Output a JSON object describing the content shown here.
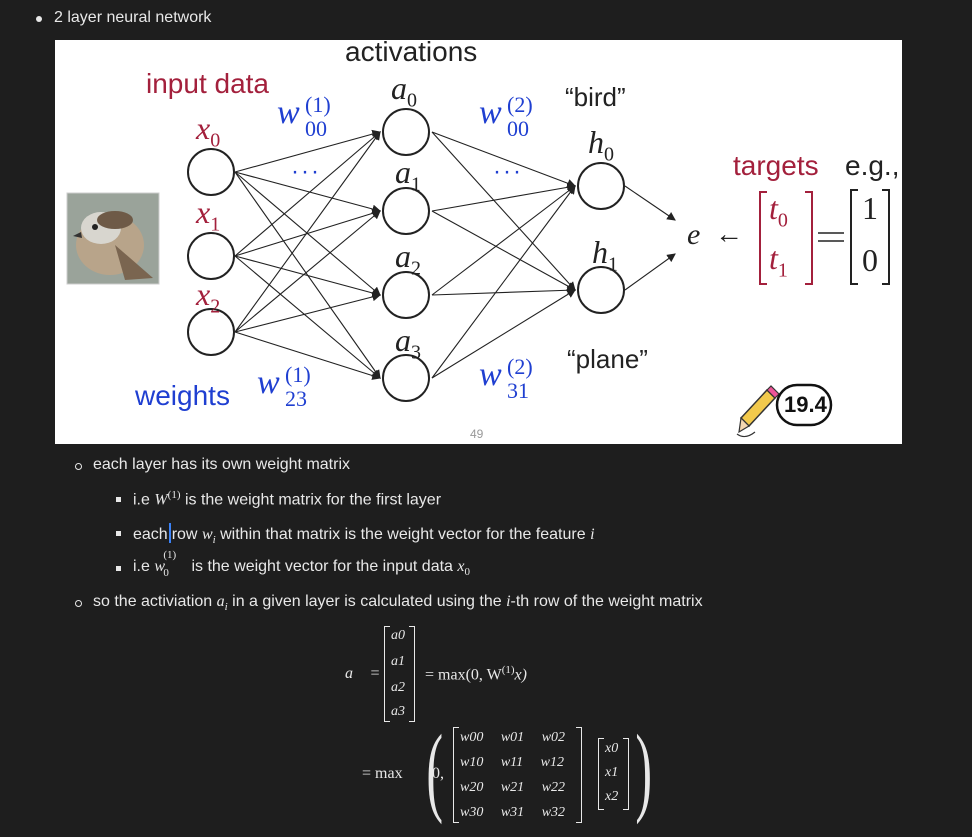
{
  "top_bullet": {
    "text": "2 layer neural network"
  },
  "slide": {
    "title": "activations",
    "input_label": "input data",
    "weights_label": "weights",
    "targets_label": "targets",
    "eg_label": "e.g.,",
    "bird_label": "“bird”",
    "plane_label": "“plane”",
    "page_number": "49",
    "badge": "19.4",
    "x_nodes": [
      "x",
      "x",
      "x"
    ],
    "x_subs": [
      "0",
      "1",
      "2"
    ],
    "a_subs": [
      "0",
      "1",
      "2",
      "3"
    ],
    "h_subs": [
      "0",
      "1"
    ],
    "ellipsis": "···",
    "e_symbol": "e",
    "arrow_left": "←",
    "targets_values": [
      "1",
      "0"
    ],
    "w1_top": {
      "sup": "(1)",
      "sub": "00"
    },
    "w1_bottom": {
      "sup": "(1)",
      "sub": "23"
    },
    "w2_top": {
      "sup": "(2)",
      "sub": "00"
    },
    "w2_bottom": {
      "sup": "(2)",
      "sub": "31"
    }
  },
  "notes": {
    "l1": "each layer has its own weight matrix",
    "l2a": "i.e ",
    "l2b": " is the weight matrix for the first layer",
    "l3a": "each",
    "l3b": "row ",
    "l3c": " within that matrix is the weight vector for the feature ",
    "l4a": "i.e ",
    "l4b": " is the weight vector for the input data ",
    "l5a": "so the activiation ",
    "l5b": " in a given layer is calculated using the ",
    "l5c": "-th row of the weight matrix"
  },
  "equations": {
    "lhs": "a⃗ =",
    "rhs1": "= max(0, W",
    "rhs1_sup": "(1)",
    "rhs1_tail": "x)",
    "rhs2": "= max",
    "zero": "0,",
    "a_vec": [
      "a0",
      "a1",
      "a2",
      "a3"
    ],
    "w_rows": [
      [
        "w00",
        "w01",
        "w02"
      ],
      [
        "w10",
        "w11",
        "w12"
      ],
      [
        "w20",
        "w21",
        "w22"
      ],
      [
        "w30",
        "w31",
        "w32"
      ]
    ],
    "x_vec": [
      "x0",
      "x1",
      "x2"
    ]
  }
}
